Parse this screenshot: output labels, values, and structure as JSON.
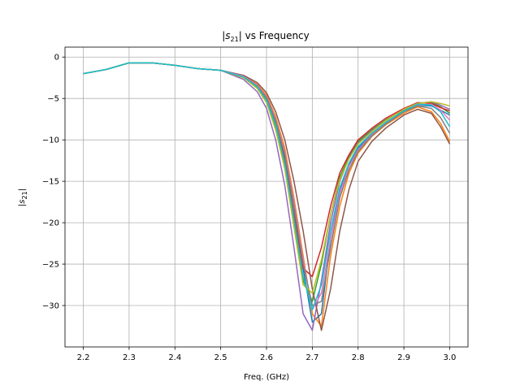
{
  "chart_data": {
    "type": "line",
    "title": "|s21| vs Frequency",
    "title_parts": {
      "pre": "|",
      "var": "s",
      "sub": "21",
      "post": "| vs Frequency"
    },
    "xlabel": "Freq. (GHz)",
    "ylabel_parts": {
      "pre": "|",
      "var": "s",
      "sub": "21",
      "post": "|"
    },
    "xlim": [
      2.16,
      3.04
    ],
    "ylim": [
      -35,
      1.2
    ],
    "x_ticks": [
      2.2,
      2.3,
      2.4,
      2.5,
      2.6,
      2.7,
      2.8,
      2.9,
      3.0
    ],
    "x_tick_labels": [
      "2.2",
      "2.3",
      "2.4",
      "2.5",
      "2.6",
      "2.7",
      "2.8",
      "2.9",
      "3.0"
    ],
    "y_ticks": [
      0,
      -5,
      -10,
      -15,
      -20,
      -25,
      -30
    ],
    "y_tick_labels": [
      "0",
      "−5",
      "−10",
      "−15",
      "−20",
      "−25",
      "−30"
    ],
    "grid": true,
    "series_colors": [
      "#1f77b4",
      "#ff7f0e",
      "#2ca02c",
      "#d62728",
      "#9467bd",
      "#8c564b",
      "#e377c2",
      "#7f7f7f",
      "#bcbd22",
      "#17becf"
    ],
    "x": [
      2.2,
      2.25,
      2.3,
      2.35,
      2.4,
      2.45,
      2.5,
      2.55,
      2.58,
      2.6,
      2.62,
      2.64,
      2.66,
      2.68,
      2.7,
      2.72,
      2.74,
      2.76,
      2.78,
      2.8,
      2.83,
      2.86,
      2.9,
      2.93,
      2.96,
      2.98,
      3.0
    ],
    "series": [
      {
        "values": [
          -2.0,
          -1.5,
          -0.7,
          -0.7,
          -1.0,
          -1.4,
          -1.6,
          -2.4,
          -3.5,
          -5.0,
          -7.8,
          -12.0,
          -18.0,
          -25.5,
          -32.0,
          -31.0,
          -22.0,
          -16.0,
          -13.0,
          -11.0,
          -9.3,
          -8.0,
          -6.5,
          -5.8,
          -5.9,
          -6.4,
          -7.0
        ]
      },
      {
        "values": [
          -2.0,
          -1.5,
          -0.7,
          -0.7,
          -1.0,
          -1.4,
          -1.6,
          -2.3,
          -3.3,
          -4.6,
          -7.2,
          -11.0,
          -17.0,
          -24.0,
          -31.0,
          -32.5,
          -24.0,
          -18.0,
          -14.0,
          -11.6,
          -9.6,
          -8.2,
          -6.8,
          -6.0,
          -6.6,
          -8.0,
          -10.2
        ]
      },
      {
        "values": [
          -2.0,
          -1.5,
          -0.7,
          -0.7,
          -1.0,
          -1.4,
          -1.6,
          -2.5,
          -3.7,
          -5.3,
          -8.5,
          -13.0,
          -20.0,
          -27.0,
          -29.5,
          -25.0,
          -19.0,
          -14.5,
          -12.0,
          -10.2,
          -8.8,
          -7.6,
          -6.4,
          -5.6,
          -5.5,
          -6.0,
          -6.8
        ]
      },
      {
        "values": [
          -2.0,
          -1.5,
          -0.7,
          -0.7,
          -1.0,
          -1.4,
          -1.6,
          -2.4,
          -3.6,
          -5.1,
          -8.0,
          -12.5,
          -19.0,
          -25.5,
          -26.5,
          -23.0,
          -18.0,
          -14.0,
          -11.8,
          -10.0,
          -8.6,
          -7.4,
          -6.2,
          -5.5,
          -5.6,
          -6.1,
          -6.5
        ]
      },
      {
        "values": [
          -2.0,
          -1.5,
          -0.7,
          -0.7,
          -1.0,
          -1.4,
          -1.6,
          -2.7,
          -4.2,
          -6.2,
          -10.0,
          -15.5,
          -23.0,
          -31.0,
          -33.0,
          -27.0,
          -20.0,
          -15.0,
          -12.2,
          -10.4,
          -8.9,
          -7.7,
          -6.3,
          -5.6,
          -5.4,
          -5.8,
          -6.3
        ]
      },
      {
        "values": [
          -2.0,
          -1.5,
          -0.7,
          -0.7,
          -1.0,
          -1.4,
          -1.6,
          -2.2,
          -3.1,
          -4.3,
          -6.6,
          -10.0,
          -15.0,
          -21.0,
          -28.0,
          -33.0,
          -28.0,
          -21.0,
          -16.0,
          -12.6,
          -10.2,
          -8.6,
          -7.0,
          -6.3,
          -6.8,
          -8.4,
          -10.5
        ]
      },
      {
        "values": [
          -2.0,
          -1.5,
          -0.7,
          -0.7,
          -1.0,
          -1.4,
          -1.6,
          -2.3,
          -3.4,
          -4.8,
          -7.5,
          -11.5,
          -17.5,
          -24.5,
          -30.5,
          -28.5,
          -22.0,
          -16.5,
          -13.2,
          -11.2,
          -9.4,
          -8.0,
          -6.6,
          -5.8,
          -5.7,
          -6.4,
          -7.6
        ]
      },
      {
        "values": [
          -2.0,
          -1.5,
          -0.7,
          -0.7,
          -1.0,
          -1.4,
          -1.6,
          -2.4,
          -3.5,
          -4.9,
          -7.7,
          -11.8,
          -18.0,
          -25.0,
          -30.0,
          -29.5,
          -23.0,
          -17.0,
          -13.6,
          -11.4,
          -9.5,
          -8.1,
          -6.6,
          -5.9,
          -6.2,
          -7.3,
          -9.2
        ]
      },
      {
        "values": [
          -2.0,
          -1.5,
          -0.7,
          -0.7,
          -1.0,
          -1.4,
          -1.6,
          -2.5,
          -3.8,
          -5.5,
          -8.8,
          -13.5,
          -20.5,
          -27.5,
          -28.5,
          -24.5,
          -19.0,
          -14.8,
          -12.3,
          -10.5,
          -9.0,
          -7.7,
          -6.3,
          -5.6,
          -5.4,
          -5.6,
          -5.9
        ]
      },
      {
        "values": [
          -2.0,
          -1.5,
          -0.7,
          -0.7,
          -1.0,
          -1.4,
          -1.6,
          -2.4,
          -3.6,
          -5.2,
          -8.2,
          -12.8,
          -19.5,
          -26.5,
          -30.5,
          -27.5,
          -21.0,
          -15.8,
          -12.8,
          -10.8,
          -9.2,
          -7.9,
          -6.5,
          -5.7,
          -5.8,
          -6.6,
          -8.4
        ]
      }
    ]
  }
}
